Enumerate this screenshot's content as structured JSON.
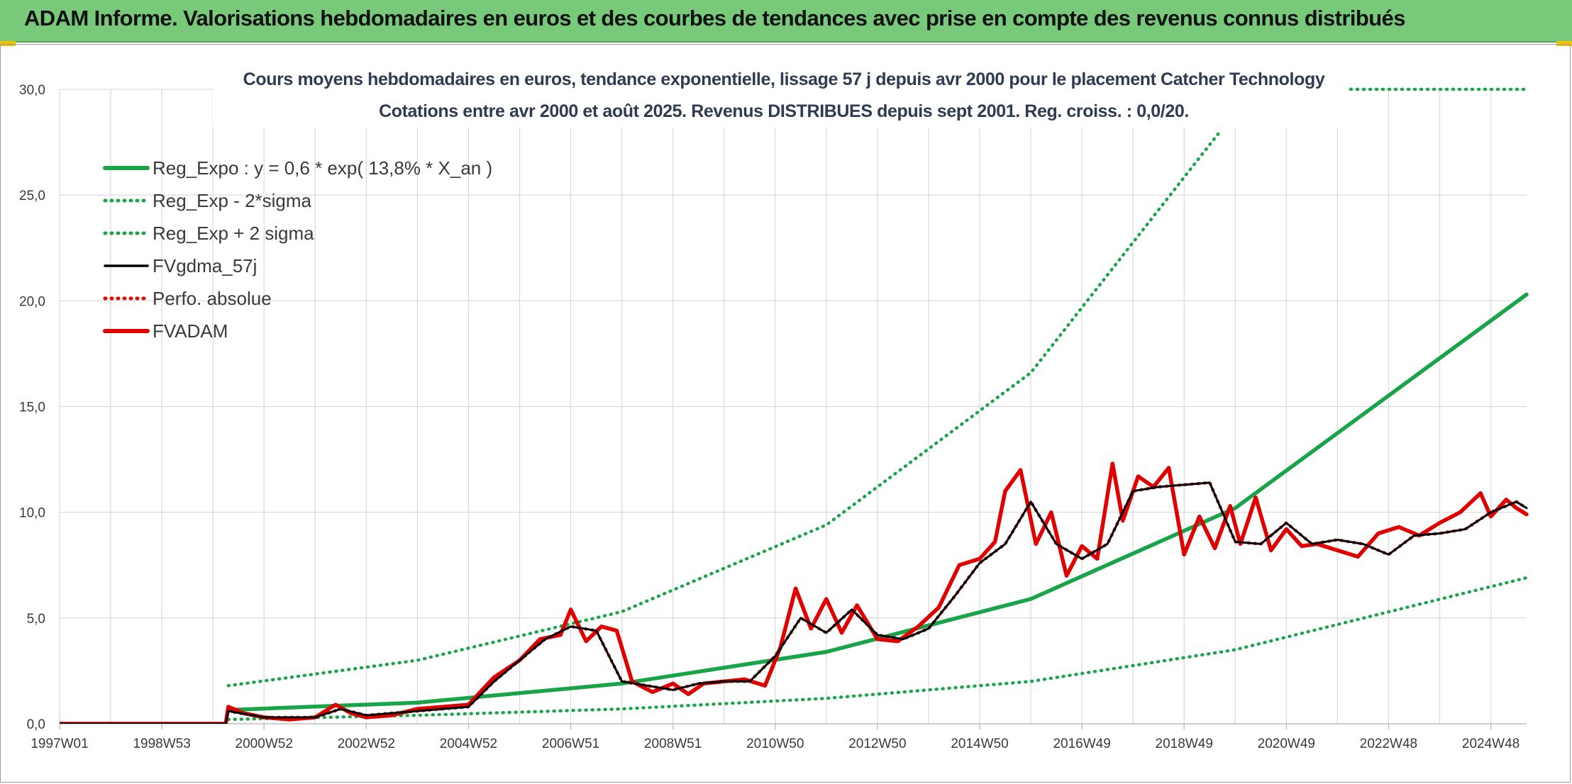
{
  "header": {
    "title": "ADAM Informe. Valorisations hebdomadaires en euros et des courbes de tendances avec prise en compte des revenus connus distribués"
  },
  "colors": {
    "header_bg": "#78c97a",
    "green": "#1aa44a",
    "black": "#000000",
    "red": "#e00000",
    "grid": "#d9d9d9"
  },
  "chart_data": {
    "type": "line",
    "title": "Cours moyens hebdomadaires en euros, tendance exponentielle, lissage 57 j depuis avr 2000 pour le placement Catcher Technology",
    "subtitle": "Cotations entre avr 2000 et août 2025. Revenus DISTRIBUES depuis sept 2001. Reg. croiss. : 0,0/20.",
    "xlabel": "",
    "ylabel": "",
    "ylim": [
      0,
      30
    ],
    "y_ticks": [
      "0,0",
      "5,0",
      "10,0",
      "15,0",
      "20,0",
      "25,0",
      "30,0"
    ],
    "x_range": [
      1997.0,
      2025.7
    ],
    "x_ticks": [
      {
        "label": "1997W01",
        "x": 1997.0
      },
      {
        "label": "1998W53",
        "x": 1999.0
      },
      {
        "label": "2000W52",
        "x": 2001.0
      },
      {
        "label": "2002W52",
        "x": 2003.0
      },
      {
        "label": "2004W52",
        "x": 2005.0
      },
      {
        "label": "2006W51",
        "x": 2007.0
      },
      {
        "label": "2008W51",
        "x": 2009.0
      },
      {
        "label": "2010W50",
        "x": 2011.0
      },
      {
        "label": "2012W50",
        "x": 2013.0
      },
      {
        "label": "2014W50",
        "x": 2015.0
      },
      {
        "label": "2016W49",
        "x": 2017.0
      },
      {
        "label": "2018W49",
        "x": 2019.0
      },
      {
        "label": "2020W49",
        "x": 2021.0
      },
      {
        "label": "2022W48",
        "x": 2023.0
      },
      {
        "label": "2024W48",
        "x": 2025.0
      }
    ],
    "grid": true,
    "legend_position": "top-left",
    "series": [
      {
        "name": "Reg_Expo : y = 0,6 * exp( 13,8% *  X_an )",
        "style": "solid-thick",
        "color": "#1aa44a",
        "x": [
          2000.3,
          2004,
          2008,
          2012,
          2016,
          2020,
          2025.7
        ],
        "y": [
          0.65,
          1.0,
          1.9,
          3.4,
          5.9,
          10.2,
          20.3
        ]
      },
      {
        "name": "Reg_Exp - 2*sigma",
        "style": "dotted",
        "color": "#1aa44a",
        "x": [
          2000.3,
          2004,
          2008,
          2012,
          2016,
          2020,
          2025.7
        ],
        "y": [
          0.2,
          0.4,
          0.7,
          1.2,
          2.0,
          3.5,
          6.9
        ]
      },
      {
        "name": "Reg_Exp + 2 sigma",
        "style": "dotted",
        "color": "#1aa44a",
        "x": [
          2000.3,
          2004,
          2008,
          2012,
          2016,
          2019.7
        ],
        "y": [
          1.8,
          3.0,
          5.3,
          9.4,
          16.6,
          28.0
        ]
      },
      {
        "name": "FVgdma_57j",
        "style": "solid",
        "color": "#000000",
        "x": [
          1997.0,
          2000.25,
          2000.3,
          2001.0,
          2002.0,
          2002.5,
          2003.0,
          2004.0,
          2005.0,
          2005.5,
          2006.0,
          2006.5,
          2007.0,
          2007.5,
          2008.0,
          2008.5,
          2009.0,
          2009.5,
          2010.0,
          2010.5,
          2011.0,
          2011.5,
          2012.0,
          2012.5,
          2013.0,
          2013.5,
          2014.0,
          2014.5,
          2015.0,
          2015.5,
          2016.0,
          2016.5,
          2017.0,
          2017.5,
          2018.0,
          2018.5,
          2019.0,
          2019.5,
          2020.0,
          2020.5,
          2021.0,
          2021.5,
          2022.0,
          2022.5,
          2023.0,
          2023.5,
          2024.0,
          2024.5,
          2025.0,
          2025.5,
          2025.7
        ],
        "y": [
          0.0,
          0.0,
          0.6,
          0.3,
          0.3,
          0.7,
          0.4,
          0.6,
          0.8,
          2.0,
          3.0,
          4.0,
          4.6,
          4.4,
          2.0,
          1.8,
          1.6,
          1.9,
          2.0,
          2.0,
          3.2,
          5.0,
          4.3,
          5.4,
          4.2,
          4.0,
          4.5,
          6.0,
          7.6,
          8.5,
          10.5,
          8.5,
          7.8,
          8.5,
          11.0,
          11.2,
          11.3,
          11.4,
          8.6,
          8.5,
          9.5,
          8.5,
          8.7,
          8.5,
          8.0,
          8.9,
          9.0,
          9.2,
          10.0,
          10.5,
          10.2
        ]
      },
      {
        "name": "Perfo. absolue",
        "style": "dotted",
        "color": "#e00000",
        "x": [
          1997.0,
          2000.25,
          2000.3,
          2001.0,
          2002.0,
          2002.5,
          2003.0,
          2004.0,
          2005.0,
          2005.5,
          2006.0,
          2006.5,
          2007.0,
          2007.5,
          2008.0,
          2008.5,
          2009.0,
          2009.5,
          2010.0,
          2010.5,
          2011.0,
          2011.5,
          2012.0,
          2012.5,
          2013.0,
          2013.5,
          2014.0,
          2014.5,
          2015.0,
          2015.5,
          2016.0,
          2016.5,
          2017.0,
          2017.5,
          2018.0,
          2018.5,
          2019.0,
          2019.5,
          2020.0,
          2020.5,
          2021.0,
          2021.5,
          2022.0,
          2022.5,
          2023.0,
          2023.5,
          2024.0,
          2024.5,
          2025.0,
          2025.5,
          2025.7
        ],
        "y": [
          0.0,
          0.0,
          0.6,
          0.3,
          0.3,
          0.7,
          0.4,
          0.6,
          0.8,
          2.0,
          3.0,
          4.0,
          4.6,
          4.4,
          2.0,
          1.8,
          1.6,
          1.9,
          2.0,
          2.0,
          3.2,
          5.0,
          4.3,
          5.4,
          4.2,
          4.0,
          4.5,
          6.0,
          7.6,
          8.5,
          10.5,
          8.5,
          7.8,
          8.5,
          11.0,
          11.2,
          11.3,
          11.4,
          8.6,
          8.5,
          9.5,
          8.5,
          8.7,
          8.5,
          8.0,
          8.9,
          9.0,
          9.2,
          10.0,
          10.5,
          10.2
        ]
      },
      {
        "name": "FVADAM",
        "style": "solid-thick",
        "color": "#e00000",
        "x": [
          1997.0,
          2000.25,
          2000.3,
          2000.6,
          2001.0,
          2001.5,
          2002.0,
          2002.4,
          2002.7,
          2003.0,
          2003.5,
          2004.0,
          2004.5,
          2005.0,
          2005.5,
          2006.0,
          2006.4,
          2006.8,
          2007.0,
          2007.3,
          2007.6,
          2007.9,
          2008.2,
          2008.6,
          2009.0,
          2009.3,
          2009.6,
          2010.0,
          2010.4,
          2010.8,
          2011.1,
          2011.4,
          2011.7,
          2012.0,
          2012.3,
          2012.6,
          2013.0,
          2013.4,
          2013.8,
          2014.2,
          2014.6,
          2015.0,
          2015.3,
          2015.5,
          2015.8,
          2016.1,
          2016.4,
          2016.7,
          2017.0,
          2017.3,
          2017.6,
          2017.8,
          2018.1,
          2018.4,
          2018.7,
          2019.0,
          2019.3,
          2019.6,
          2019.9,
          2020.1,
          2020.4,
          2020.7,
          2021.0,
          2021.3,
          2021.6,
          2022.0,
          2022.4,
          2022.8,
          2023.2,
          2023.6,
          2024.0,
          2024.4,
          2024.8,
          2025.0,
          2025.3,
          2025.5,
          2025.7
        ],
        "y": [
          0.0,
          0.0,
          0.8,
          0.5,
          0.3,
          0.2,
          0.3,
          0.9,
          0.5,
          0.3,
          0.4,
          0.7,
          0.8,
          0.9,
          2.2,
          3.0,
          4.0,
          4.2,
          5.4,
          3.9,
          4.6,
          4.4,
          2.0,
          1.5,
          1.9,
          1.4,
          1.9,
          2.0,
          2.1,
          1.8,
          3.6,
          6.4,
          4.5,
          5.9,
          4.3,
          5.6,
          4.0,
          3.9,
          4.6,
          5.5,
          7.5,
          7.8,
          8.6,
          11.0,
          12.0,
          8.5,
          10.0,
          7.0,
          8.4,
          7.8,
          12.3,
          9.6,
          11.7,
          11.2,
          12.1,
          8.0,
          9.8,
          8.3,
          10.3,
          8.5,
          10.7,
          8.2,
          9.2,
          8.4,
          8.5,
          8.2,
          7.9,
          9.0,
          9.3,
          8.9,
          9.5,
          10.0,
          10.9,
          9.8,
          10.6,
          10.2,
          9.9
        ]
      }
    ]
  }
}
